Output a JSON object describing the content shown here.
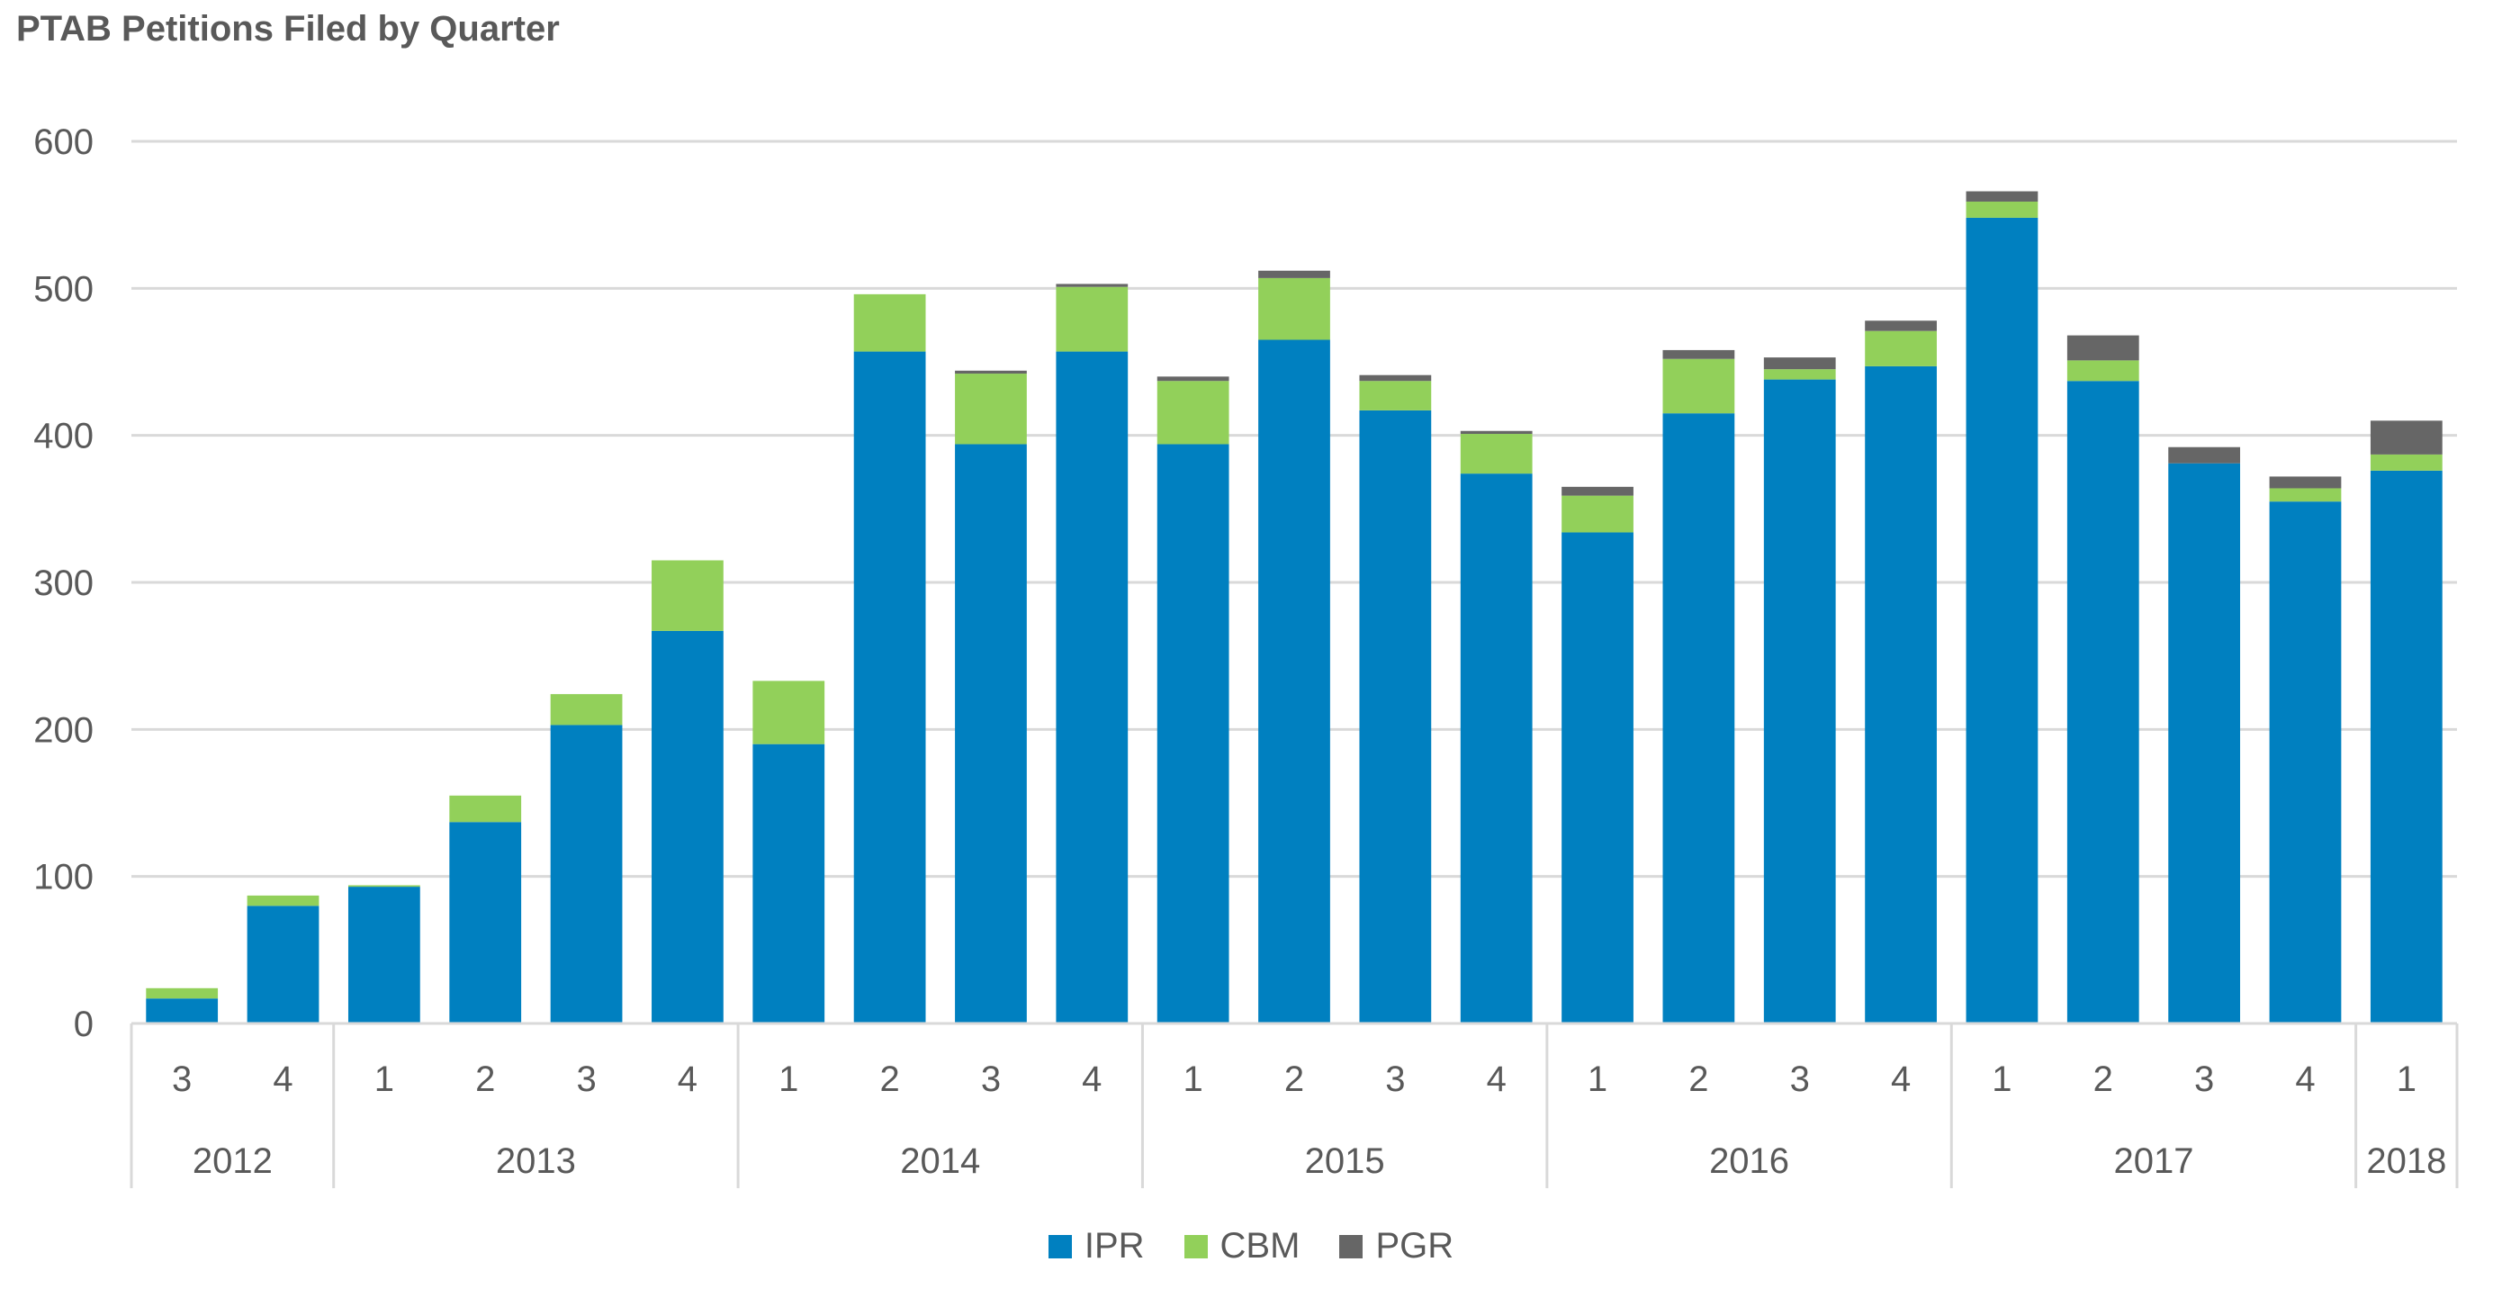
{
  "title": "PTAB Petitions Filed by Quarter",
  "colors": {
    "IPR": "#0080c0",
    "CBM": "#92d05a",
    "PGR": "#666666",
    "grid": "#d9d9d9",
    "axis_text": "#595959"
  },
  "legend": [
    {
      "name": "IPR",
      "color": "#0080c0"
    },
    {
      "name": "CBM",
      "color": "#92d05a"
    },
    {
      "name": "PGR",
      "color": "#666666"
    }
  ],
  "chart_data": {
    "type": "bar",
    "stacked": true,
    "title": "PTAB Petitions Filed by Quarter",
    "ylim": [
      0,
      600
    ],
    "yticks": [
      0,
      100,
      200,
      300,
      400,
      500,
      600
    ],
    "grid": true,
    "legend_position": "bottom",
    "categories": [
      "3",
      "4",
      "1",
      "2",
      "3",
      "4",
      "1",
      "2",
      "3",
      "4",
      "1",
      "2",
      "3",
      "4",
      "1",
      "2",
      "3",
      "4",
      "1",
      "2",
      "3",
      "4",
      "1"
    ],
    "years": [
      {
        "label": "2012",
        "count": 2
      },
      {
        "label": "2013",
        "count": 4
      },
      {
        "label": "2014",
        "count": 4
      },
      {
        "label": "2015",
        "count": 4
      },
      {
        "label": "2016",
        "count": 4
      },
      {
        "label": "2017",
        "count": 4
      },
      {
        "label": "2018",
        "count": 1
      }
    ],
    "series": [
      {
        "name": "IPR",
        "values": [
          17,
          80,
          93,
          137,
          203,
          267,
          190,
          457,
          394,
          457,
          394,
          465,
          417,
          374,
          334,
          415,
          438,
          447,
          548,
          437,
          381,
          355,
          376
        ]
      },
      {
        "name": "CBM",
        "values": [
          7,
          7,
          1,
          18,
          21,
          48,
          43,
          39,
          48,
          44,
          43,
          42,
          20,
          27,
          25,
          37,
          7,
          24,
          11,
          14,
          0,
          9,
          11
        ]
      },
      {
        "name": "PGR",
        "values": [
          0,
          0,
          0,
          0,
          0,
          0,
          0,
          0,
          2,
          2,
          3,
          5,
          4,
          2,
          6,
          6,
          8,
          7,
          7,
          17,
          11,
          8,
          23
        ]
      }
    ]
  }
}
